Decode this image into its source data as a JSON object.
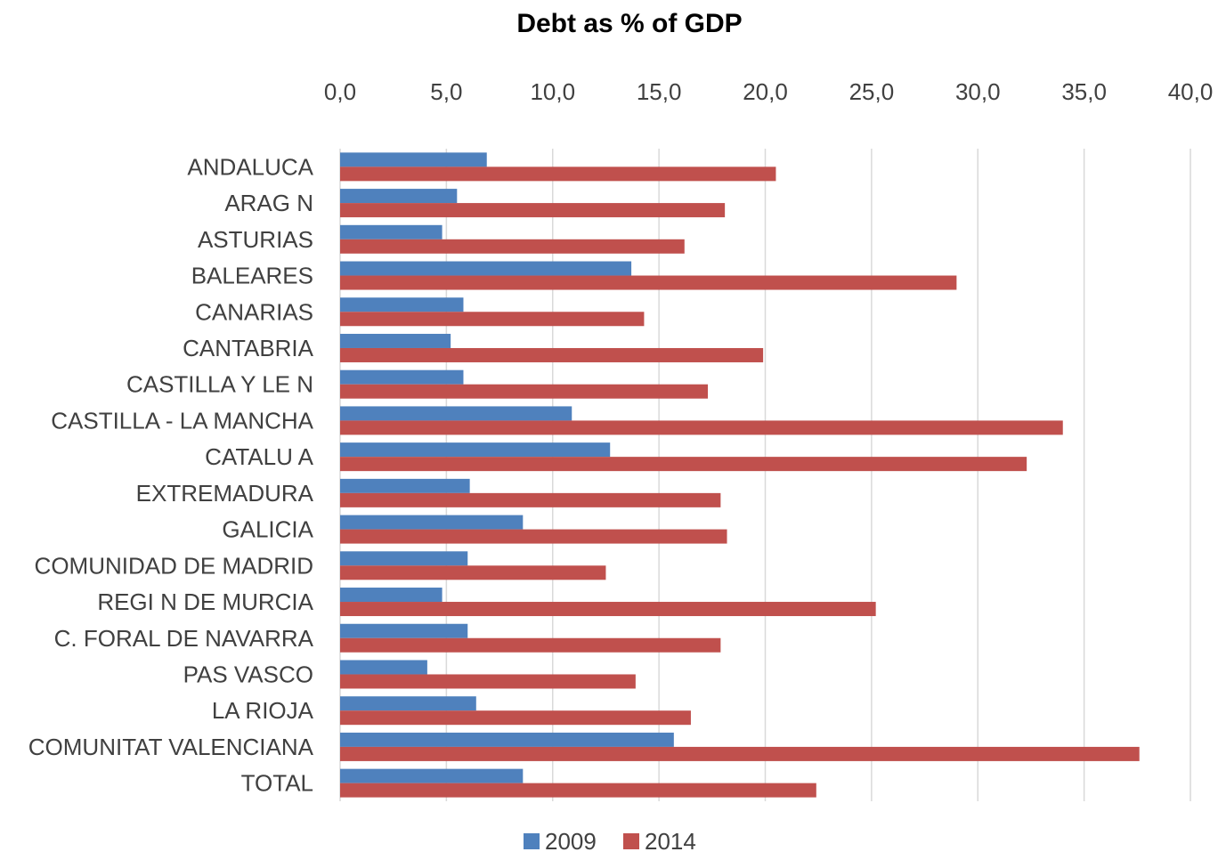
{
  "chart_data": {
    "type": "bar",
    "orientation": "horizontal",
    "title": "Debt as % of GDP",
    "xlabel": "",
    "ylabel": "",
    "xlim": [
      0,
      40
    ],
    "xticks": [
      "0,0",
      "5,0",
      "10,0",
      "15,0",
      "20,0",
      "25,0",
      "30,0",
      "35,0",
      "40,0"
    ],
    "axis_position": "top",
    "grid": true,
    "legend_position": "bottom",
    "categories": [
      "ANDALUC\u001fA",
      "ARAG\u001f N",
      "ASTURIAS",
      "BALEARES",
      "CANARIAS",
      "CANTABRIA",
      "CASTILLA Y LE\u001f N",
      "CASTILLA - LA MANCHA",
      "CATALU\u001f A",
      "EXTREMADURA",
      "GALICIA",
      "COMUNIDAD DE MADRID",
      "REGI\u001f N DE MURCIA",
      "C. FORAL DE NAVARRA",
      "PA\u001fS VASCO",
      "LA RIOJA",
      "COMUNITAT VALENCIANA",
      "TOTAL"
    ],
    "series": [
      {
        "name": "2009",
        "color": "#4f81bd",
        "values": [
          6.9,
          5.5,
          4.8,
          13.7,
          5.8,
          5.2,
          5.8,
          10.9,
          12.7,
          6.1,
          8.6,
          6.0,
          4.8,
          6.0,
          4.1,
          6.4,
          15.7,
          8.6
        ]
      },
      {
        "name": "2014",
        "color": "#c0504d",
        "values": [
          20.5,
          18.1,
          16.2,
          29.0,
          14.3,
          19.9,
          17.3,
          34.0,
          32.3,
          17.9,
          18.2,
          12.5,
          25.2,
          17.9,
          13.9,
          16.5,
          37.6,
          22.4
        ]
      }
    ]
  }
}
